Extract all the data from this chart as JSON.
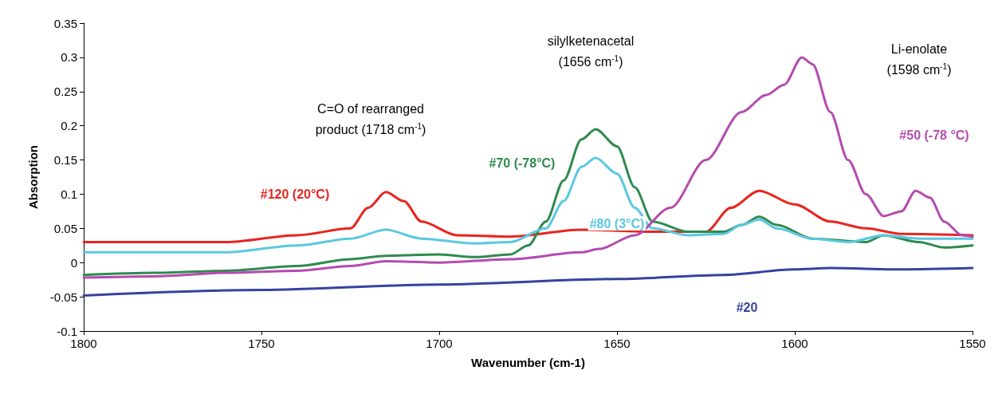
{
  "chart_data": {
    "type": "line",
    "xlabel": "Wavenumber (cm-1)",
    "ylabel": "Absorption",
    "xlim": [
      1800,
      1550
    ],
    "xticks": [
      1800,
      1750,
      1700,
      1650,
      1600,
      1550
    ],
    "ylim": [
      -0.1,
      0.35
    ],
    "yticks": [
      -0.1,
      -0.05,
      0,
      0.05,
      0.1,
      0.15,
      0.2,
      0.25,
      0.3,
      0.35
    ],
    "grid": false,
    "legend": false,
    "marker": "none",
    "line_style": "solid",
    "annotations": [
      "C=O of rearranged\nproduct (1718 cm$^{-1}$)",
      "silylketenacetal\n(1656 cm$^{-1}$)",
      "Li-enolate\n(1598 cm$^{-1}$)"
    ],
    "series": [
      {
        "name": "#120 (20°C)",
        "color": "#e8251f",
        "x": [
          1800,
          1760,
          1740,
          1725,
          1720,
          1715,
          1710,
          1705,
          1695,
          1680,
          1660,
          1640,
          1625,
          1618,
          1610,
          1600,
          1590,
          1580,
          1570,
          1550
        ],
        "values": [
          0.03,
          0.03,
          0.04,
          0.05,
          0.08,
          0.103,
          0.09,
          0.06,
          0.04,
          0.038,
          0.048,
          0.045,
          0.045,
          0.08,
          0.105,
          0.085,
          0.06,
          0.05,
          0.042,
          0.04
        ]
      },
      {
        "name": "#70 (-78°C)",
        "color": "#2e8b4e",
        "x": [
          1800,
          1780,
          1760,
          1740,
          1725,
          1715,
          1700,
          1690,
          1680,
          1675,
          1670,
          1665,
          1660,
          1656,
          1650,
          1645,
          1640,
          1630,
          1620,
          1615,
          1610,
          1605,
          1595,
          1580,
          1575,
          1565,
          1558,
          1550
        ],
        "values": [
          -0.018,
          -0.015,
          -0.012,
          -0.005,
          0.005,
          0.01,
          0.012,
          0.008,
          0.012,
          0.025,
          0.06,
          0.12,
          0.18,
          0.195,
          0.17,
          0.11,
          0.06,
          0.045,
          0.045,
          0.055,
          0.067,
          0.055,
          0.035,
          0.03,
          0.04,
          0.03,
          0.022,
          0.025
        ]
      },
      {
        "name": "#80 (3°C)",
        "color": "#5bc8e0",
        "x": [
          1800,
          1760,
          1740,
          1725,
          1715,
          1705,
          1690,
          1680,
          1670,
          1665,
          1660,
          1656,
          1650,
          1645,
          1640,
          1630,
          1620,
          1615,
          1610,
          1605,
          1595,
          1585,
          1575,
          1565,
          1550
        ],
        "values": [
          0.015,
          0.015,
          0.025,
          0.035,
          0.048,
          0.035,
          0.028,
          0.03,
          0.05,
          0.09,
          0.14,
          0.153,
          0.13,
          0.08,
          0.05,
          0.04,
          0.042,
          0.055,
          0.063,
          0.05,
          0.035,
          0.03,
          0.04,
          0.035,
          0.035
        ]
      },
      {
        "name": "#50 (-78 °C)",
        "color": "#b44bb0",
        "x": [
          1800,
          1780,
          1760,
          1740,
          1725,
          1715,
          1700,
          1680,
          1660,
          1655,
          1645,
          1635,
          1625,
          1615,
          1608,
          1603,
          1598,
          1595,
          1590,
          1585,
          1580,
          1575,
          1570,
          1566,
          1562,
          1558,
          1553,
          1550
        ],
        "values": [
          -0.022,
          -0.02,
          -0.015,
          -0.012,
          -0.005,
          0.002,
          0,
          0.005,
          0.015,
          0.02,
          0.04,
          0.08,
          0.15,
          0.22,
          0.245,
          0.26,
          0.3,
          0.29,
          0.22,
          0.15,
          0.1,
          0.068,
          0.075,
          0.105,
          0.095,
          0.06,
          0.04,
          0.038
        ]
      },
      {
        "name": "#20",
        "color": "#3443a0",
        "x": [
          1800,
          1750,
          1700,
          1650,
          1620,
          1600,
          1590,
          1570,
          1550
        ],
        "values": [
          -0.048,
          -0.04,
          -0.032,
          -0.024,
          -0.018,
          -0.01,
          -0.008,
          -0.01,
          -0.008
        ]
      }
    ]
  }
}
